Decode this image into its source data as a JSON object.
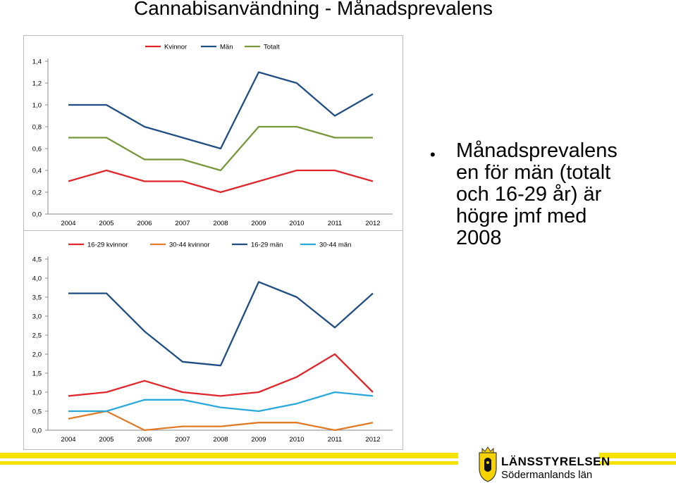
{
  "title": "Cannabisanvändning - Månadsprevalens",
  "bullet": "Månadsprevalens\nen för män (totalt\noch 16-29 år) är\nhögre jmf med\n2008",
  "logo": {
    "name": "LÄNSSTYRELSEN",
    "region": "Södermanlands län"
  },
  "colors": {
    "stripe": "#f6e400"
  },
  "chart_data": [
    {
      "type": "line",
      "title": "",
      "xlabel": "",
      "ylabel": "",
      "x": [
        "2004",
        "2005",
        "2006",
        "2007",
        "2008",
        "2009",
        "2010",
        "2011",
        "2012"
      ],
      "ylim": [
        0,
        1.4
      ],
      "yticks": [
        "0,0",
        "0,2",
        "0,4",
        "0,6",
        "0,8",
        "1,0",
        "1,2",
        "1,4"
      ],
      "grid": false,
      "legend": "top",
      "series": [
        {
          "name": "Kvinnor",
          "color": "#e0262b",
          "values": [
            0.3,
            0.4,
            0.3,
            0.3,
            0.2,
            0.3,
            0.4,
            0.4,
            0.3
          ]
        },
        {
          "name": "Män",
          "color": "#1f4e82",
          "values": [
            1.0,
            1.0,
            0.8,
            0.7,
            0.6,
            1.3,
            1.2,
            0.9,
            1.1
          ]
        },
        {
          "name": "Totalt",
          "color": "#77983a",
          "values": [
            0.7,
            0.7,
            0.5,
            0.5,
            0.4,
            0.8,
            0.8,
            0.7,
            0.7
          ]
        }
      ]
    },
    {
      "type": "line",
      "title": "",
      "xlabel": "",
      "ylabel": "",
      "x": [
        "2004",
        "2005",
        "2006",
        "2007",
        "2008",
        "2009",
        "2010",
        "2011",
        "2012"
      ],
      "ylim": [
        0,
        4.5
      ],
      "yticks": [
        "0,0",
        "0,5",
        "1,0",
        "1,5",
        "2,0",
        "2,5",
        "3,0",
        "3,5",
        "4,0",
        "4,5"
      ],
      "grid": false,
      "legend": "top",
      "series": [
        {
          "name": "16-29 kvinnor",
          "color": "#e0262b",
          "values": [
            0.9,
            1.0,
            1.3,
            1.0,
            0.9,
            1.0,
            1.4,
            2.0,
            1.0
          ]
        },
        {
          "name": "30-44 kvinnor",
          "color": "#e07c28",
          "values": [
            0.3,
            0.5,
            0.0,
            0.1,
            0.1,
            0.2,
            0.2,
            0.0,
            0.2
          ]
        },
        {
          "name": "16-29 män",
          "color": "#1f4e82",
          "values": [
            3.6,
            3.6,
            2.6,
            1.8,
            1.7,
            3.9,
            3.5,
            2.7,
            3.6
          ]
        },
        {
          "name": "30-44 män",
          "color": "#2aa8dc",
          "values": [
            0.5,
            0.5,
            0.8,
            0.8,
            0.6,
            0.5,
            0.7,
            1.0,
            0.9
          ]
        }
      ]
    }
  ]
}
